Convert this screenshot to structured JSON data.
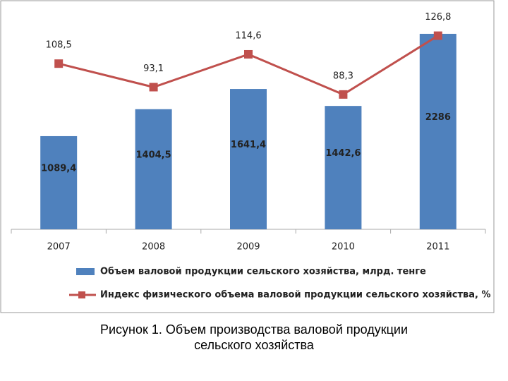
{
  "chart_data": {
    "type": "bar-line",
    "categories": [
      "2007",
      "2008",
      "2009",
      "2010",
      "2011"
    ],
    "series": [
      {
        "name": "Объем валовой продукции сельского хозяйства, млрд. тенге",
        "type": "bar",
        "color": "#4f81bd",
        "values": [
          1089.4,
          1404.5,
          1641.4,
          1442.6,
          2286
        ],
        "value_labels": [
          "1089,4",
          "1404,5",
          "1641,4",
          "1442,6",
          "2286"
        ]
      },
      {
        "name": "Индекс физического объема валовой продукции сельского хозяйства, %",
        "type": "line",
        "axis": "y2",
        "color": "#c0504d",
        "values": [
          108.5,
          93.1,
          114.6,
          88.3,
          126.8
        ],
        "value_labels": [
          "108,5",
          "93,1",
          "114,6",
          "88,3",
          "126,8"
        ]
      }
    ],
    "ylim": [
      0,
      2500
    ],
    "y2lim": [
      0,
      140
    ],
    "legend": "bottom"
  },
  "caption": [
    "Рисунок 1. Объем производства валовой продукции",
    "сельского хозяйства"
  ]
}
